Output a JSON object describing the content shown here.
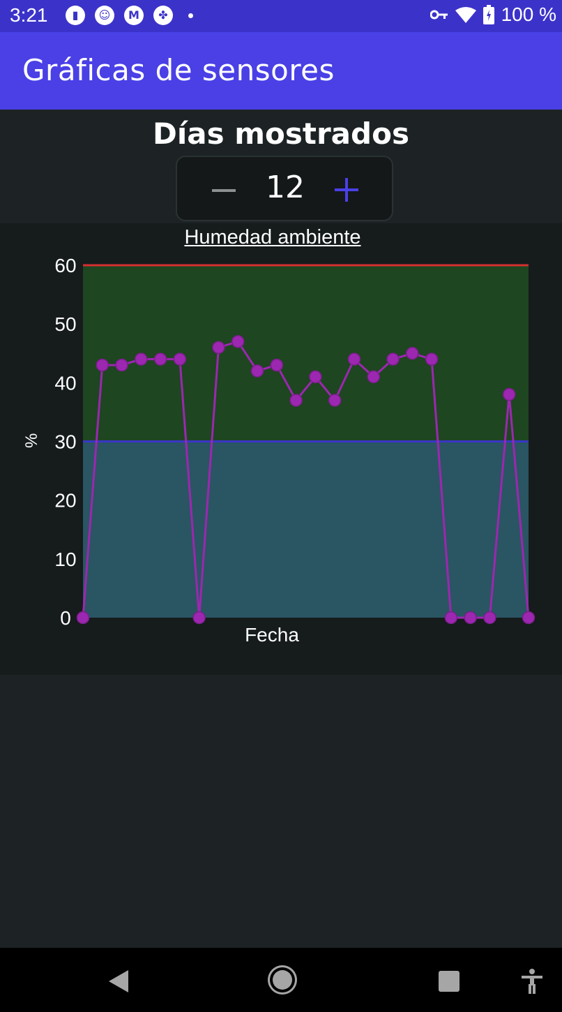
{
  "status_bar": {
    "time": "3:21",
    "notification_icons": [
      "sync-icon",
      "messages-icon",
      "gmail-icon",
      "pinwheel-icon"
    ],
    "battery": "100 %"
  },
  "app_bar": {
    "title": "Gráficas de sensores"
  },
  "days_control": {
    "title": "Días mostrados",
    "value": "12",
    "decrement_icon": "minus-icon",
    "increment_icon": "plus-icon"
  },
  "chart_data": {
    "type": "line",
    "title": "Humedad ambiente",
    "xlabel": "Fecha",
    "ylabel": "%",
    "ylim": [
      0,
      60
    ],
    "yticks": [
      "0",
      "10",
      "20",
      "30",
      "40",
      "50",
      "60"
    ],
    "grid": false,
    "bands": [
      {
        "from": 0,
        "to": 30,
        "color": "#2a5563"
      },
      {
        "from": 30,
        "to": 60,
        "color": "#1e4620"
      }
    ],
    "threshold_lines": [
      {
        "value": 60,
        "color": "#d32f2f"
      },
      {
        "value": 30,
        "color": "#3a35c8"
      }
    ],
    "series": [
      {
        "color": "#9c27b0",
        "values": [
          0,
          43,
          43,
          44,
          44,
          44,
          0,
          46,
          47,
          42,
          43,
          37,
          41,
          37,
          44,
          41,
          44,
          45,
          44,
          0,
          0,
          0,
          38,
          0
        ]
      }
    ]
  },
  "nav_bar": {
    "back": "back-icon",
    "home": "home-icon",
    "recents": "recents-icon",
    "accessibility": "accessibility-icon"
  }
}
